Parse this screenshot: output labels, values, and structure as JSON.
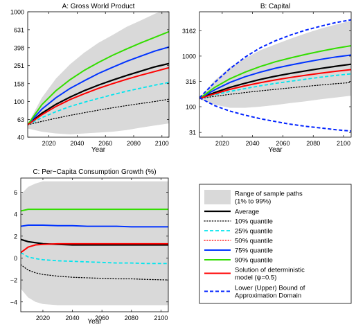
{
  "colors": {
    "band": "#d9d9d9",
    "average": "#000000",
    "q10": "#000000",
    "q25": "#00e5ee",
    "q50": "#ff0000",
    "q75": "#0033ff",
    "q90": "#33dd00",
    "deterministic": "#ff0000",
    "bound": "#0022ff"
  },
  "chart_data": [
    {
      "id": "A",
      "type": "line",
      "title": "A: Gross World Product",
      "xlabel": "Year",
      "ylabel": "",
      "yscale": "log",
      "xlim": [
        2005,
        2105
      ],
      "ylim": [
        40,
        1000
      ],
      "xticks": [
        2020,
        2040,
        2060,
        2080,
        2100
      ],
      "yticks": [
        40,
        63,
        100,
        158,
        251,
        398,
        631,
        1000
      ],
      "grid": false,
      "x": [
        2005,
        2015,
        2025,
        2035,
        2045,
        2055,
        2065,
        2075,
        2085,
        2095,
        2105
      ],
      "band": {
        "name": "Range of sample paths (1% to 99%)",
        "lower": [
          50,
          46,
          44,
          43,
          44,
          45,
          46,
          48,
          51,
          54,
          57
        ],
        "upper": [
          56,
          110,
          180,
          260,
          350,
          450,
          550,
          680,
          800,
          950,
          1100
        ]
      },
      "series": [
        {
          "name": "Average",
          "key": "average",
          "values": [
            55,
            74,
            93,
            112,
            132,
            152,
            173,
            195,
            218,
            243,
            265
          ]
        },
        {
          "name": "10% quantile",
          "key": "q10",
          "values": [
            55,
            60,
            65,
            70,
            75,
            80,
            85,
            90,
            95,
            100,
            106
          ]
        },
        {
          "name": "25% quantile",
          "key": "q25",
          "values": [
            55,
            66,
            77,
            88,
            98,
            108,
            119,
            130,
            141,
            152,
            163
          ]
        },
        {
          "name": "75% quantile",
          "key": "q75",
          "values": [
            55,
            82,
            110,
            140,
            170,
            205,
            240,
            280,
            320,
            365,
            405
          ]
        },
        {
          "name": "90% quantile",
          "key": "q90",
          "values": [
            55,
            92,
            132,
            175,
            222,
            272,
            327,
            385,
            450,
            520,
            600
          ]
        },
        {
          "name": "Solution of deterministic model",
          "key": "deterministic",
          "values": [
            55,
            71,
            88,
            105,
            122,
            140,
            158,
            177,
            196,
            216,
            238
          ]
        }
      ]
    },
    {
      "id": "B",
      "type": "line",
      "title": "B: Capital",
      "xlabel": "Year",
      "ylabel": "",
      "yscale": "log",
      "xlim": [
        2005,
        2105
      ],
      "ylim": [
        25,
        7500
      ],
      "xticks": [
        2020,
        2040,
        2060,
        2080,
        2100
      ],
      "yticks": [
        31,
        100,
        316,
        1000,
        3162
      ],
      "grid": false,
      "x": [
        2005,
        2015,
        2025,
        2035,
        2045,
        2055,
        2065,
        2075,
        2085,
        2095,
        2105
      ],
      "band": {
        "name": "Range of sample paths (1% to 99%)",
        "lower": [
          140,
          110,
          95,
          95,
          100,
          108,
          118,
          128,
          140,
          152,
          165
        ],
        "upper": [
          150,
          330,
          600,
          900,
          1300,
          1700,
          2200,
          2800,
          3500,
          4200,
          5000
        ]
      },
      "series": [
        {
          "name": "Average",
          "key": "average",
          "values": [
            145,
            190,
            240,
            290,
            345,
            400,
            455,
            510,
            570,
            630,
            690
          ]
        },
        {
          "name": "10% quantile",
          "key": "q10",
          "values": [
            145,
            160,
            175,
            190,
            205,
            220,
            236,
            252,
            268,
            285,
            300
          ]
        },
        {
          "name": "25% quantile",
          "key": "q25",
          "values": [
            145,
            172,
            200,
            228,
            258,
            288,
            318,
            350,
            383,
            415,
            445
          ]
        },
        {
          "name": "75% quantile",
          "key": "q75",
          "values": [
            145,
            215,
            300,
            390,
            480,
            575,
            665,
            760,
            860,
            960,
            1050
          ]
        },
        {
          "name": "90% quantile",
          "key": "q90",
          "values": [
            145,
            240,
            355,
            480,
            620,
            770,
            920,
            1080,
            1250,
            1430,
            1600
          ]
        },
        {
          "name": "Solution of deterministic model",
          "key": "deterministic",
          "values": [
            145,
            180,
            220,
            258,
            298,
            338,
            378,
            418,
            460,
            500,
            540
          ]
        },
        {
          "name": "Upper Bound of Approximation Domain",
          "key": "bound",
          "values": [
            150,
            300,
            560,
            950,
            1450,
            2000,
            2600,
            3250,
            3900,
            4600,
            5200
          ]
        },
        {
          "name": "Lower Bound of Approximation Domain",
          "key": "bound",
          "values": [
            150,
            105,
            82,
            68,
            58,
            51,
            45,
            41,
            38,
            35,
            33
          ]
        }
      ]
    },
    {
      "id": "C",
      "type": "line",
      "title": "C: Per−Capita Consumption Growth (%)",
      "xlabel": "Year",
      "ylabel": "",
      "yscale": "linear",
      "xlim": [
        2005,
        2105
      ],
      "ylim": [
        -4.9,
        7.3
      ],
      "xticks": [
        2020,
        2040,
        2060,
        2080,
        2100
      ],
      "yticks": [
        -4,
        -2,
        0,
        2,
        4,
        6
      ],
      "grid": false,
      "x": [
        2005,
        2010,
        2015,
        2020,
        2030,
        2040,
        2050,
        2060,
        2070,
        2080,
        2090,
        2105
      ],
      "band": {
        "name": "Range of sample paths (1% to 99%)",
        "lower": [
          -2.8,
          -3.6,
          -4.0,
          -4.2,
          -4.3,
          -4.3,
          -4.3,
          -4.3,
          -4.3,
          -4.3,
          -4.3,
          -4.3
        ],
        "upper": [
          5.8,
          6.5,
          6.8,
          7.0,
          7.0,
          7.0,
          7.0,
          7.0,
          7.0,
          7.0,
          7.0,
          7.0
        ]
      },
      "series": [
        {
          "name": "Average",
          "key": "average",
          "values": [
            1.7,
            1.5,
            1.4,
            1.3,
            1.25,
            1.2,
            1.2,
            1.2,
            1.2,
            1.2,
            1.2,
            1.2
          ]
        },
        {
          "name": "10% quantile",
          "key": "q10",
          "values": [
            -0.6,
            -1.1,
            -1.35,
            -1.5,
            -1.65,
            -1.75,
            -1.8,
            -1.85,
            -1.9,
            -1.9,
            -1.95,
            -2.0
          ]
        },
        {
          "name": "25% quantile",
          "key": "q25",
          "values": [
            0.5,
            0.1,
            -0.05,
            -0.15,
            -0.25,
            -0.3,
            -0.35,
            -0.4,
            -0.45,
            -0.45,
            -0.5,
            -0.5
          ]
        },
        {
          "name": "75% quantile",
          "key": "q75",
          "values": [
            2.9,
            3.0,
            3.0,
            3.0,
            2.95,
            2.95,
            2.9,
            2.9,
            2.9,
            2.85,
            2.85,
            2.85
          ]
        },
        {
          "name": "90% quantile",
          "key": "q90",
          "values": [
            4.3,
            4.45,
            4.45,
            4.45,
            4.45,
            4.45,
            4.45,
            4.45,
            4.45,
            4.45,
            4.45,
            4.45
          ]
        },
        {
          "name": "Solution of deterministic model",
          "key": "deterministic",
          "values": [
            0.5,
            1.0,
            1.2,
            1.25,
            1.3,
            1.3,
            1.3,
            1.3,
            1.3,
            1.3,
            1.3,
            1.3
          ]
        }
      ]
    }
  ],
  "legend": {
    "placement": "bottom-right",
    "entries": [
      {
        "key": "band",
        "style": "band",
        "lines": [
          "Range of sample paths",
          "(1% to 99%)"
        ]
      },
      {
        "key": "average",
        "style": "solid",
        "lines": [
          "Average"
        ]
      },
      {
        "key": "q10",
        "style": "dotted",
        "lines": [
          "10% quantile"
        ]
      },
      {
        "key": "q25",
        "style": "dashed",
        "lines": [
          "25% quantile"
        ]
      },
      {
        "key": "q50",
        "style": "dotted",
        "lines": [
          "50% quantile"
        ]
      },
      {
        "key": "q75",
        "style": "solid",
        "lines": [
          "75% quantile"
        ]
      },
      {
        "key": "q90",
        "style": "solid",
        "lines": [
          "90% quantile"
        ]
      },
      {
        "key": "deterministic",
        "style": "solid",
        "lines": [
          "Solution of deterministic",
          "model (ψ=0.5)"
        ]
      },
      {
        "key": "bound",
        "style": "dashed",
        "lines": [
          "Lower (Upper) Bound of",
          "Approximation Domain"
        ]
      }
    ]
  }
}
